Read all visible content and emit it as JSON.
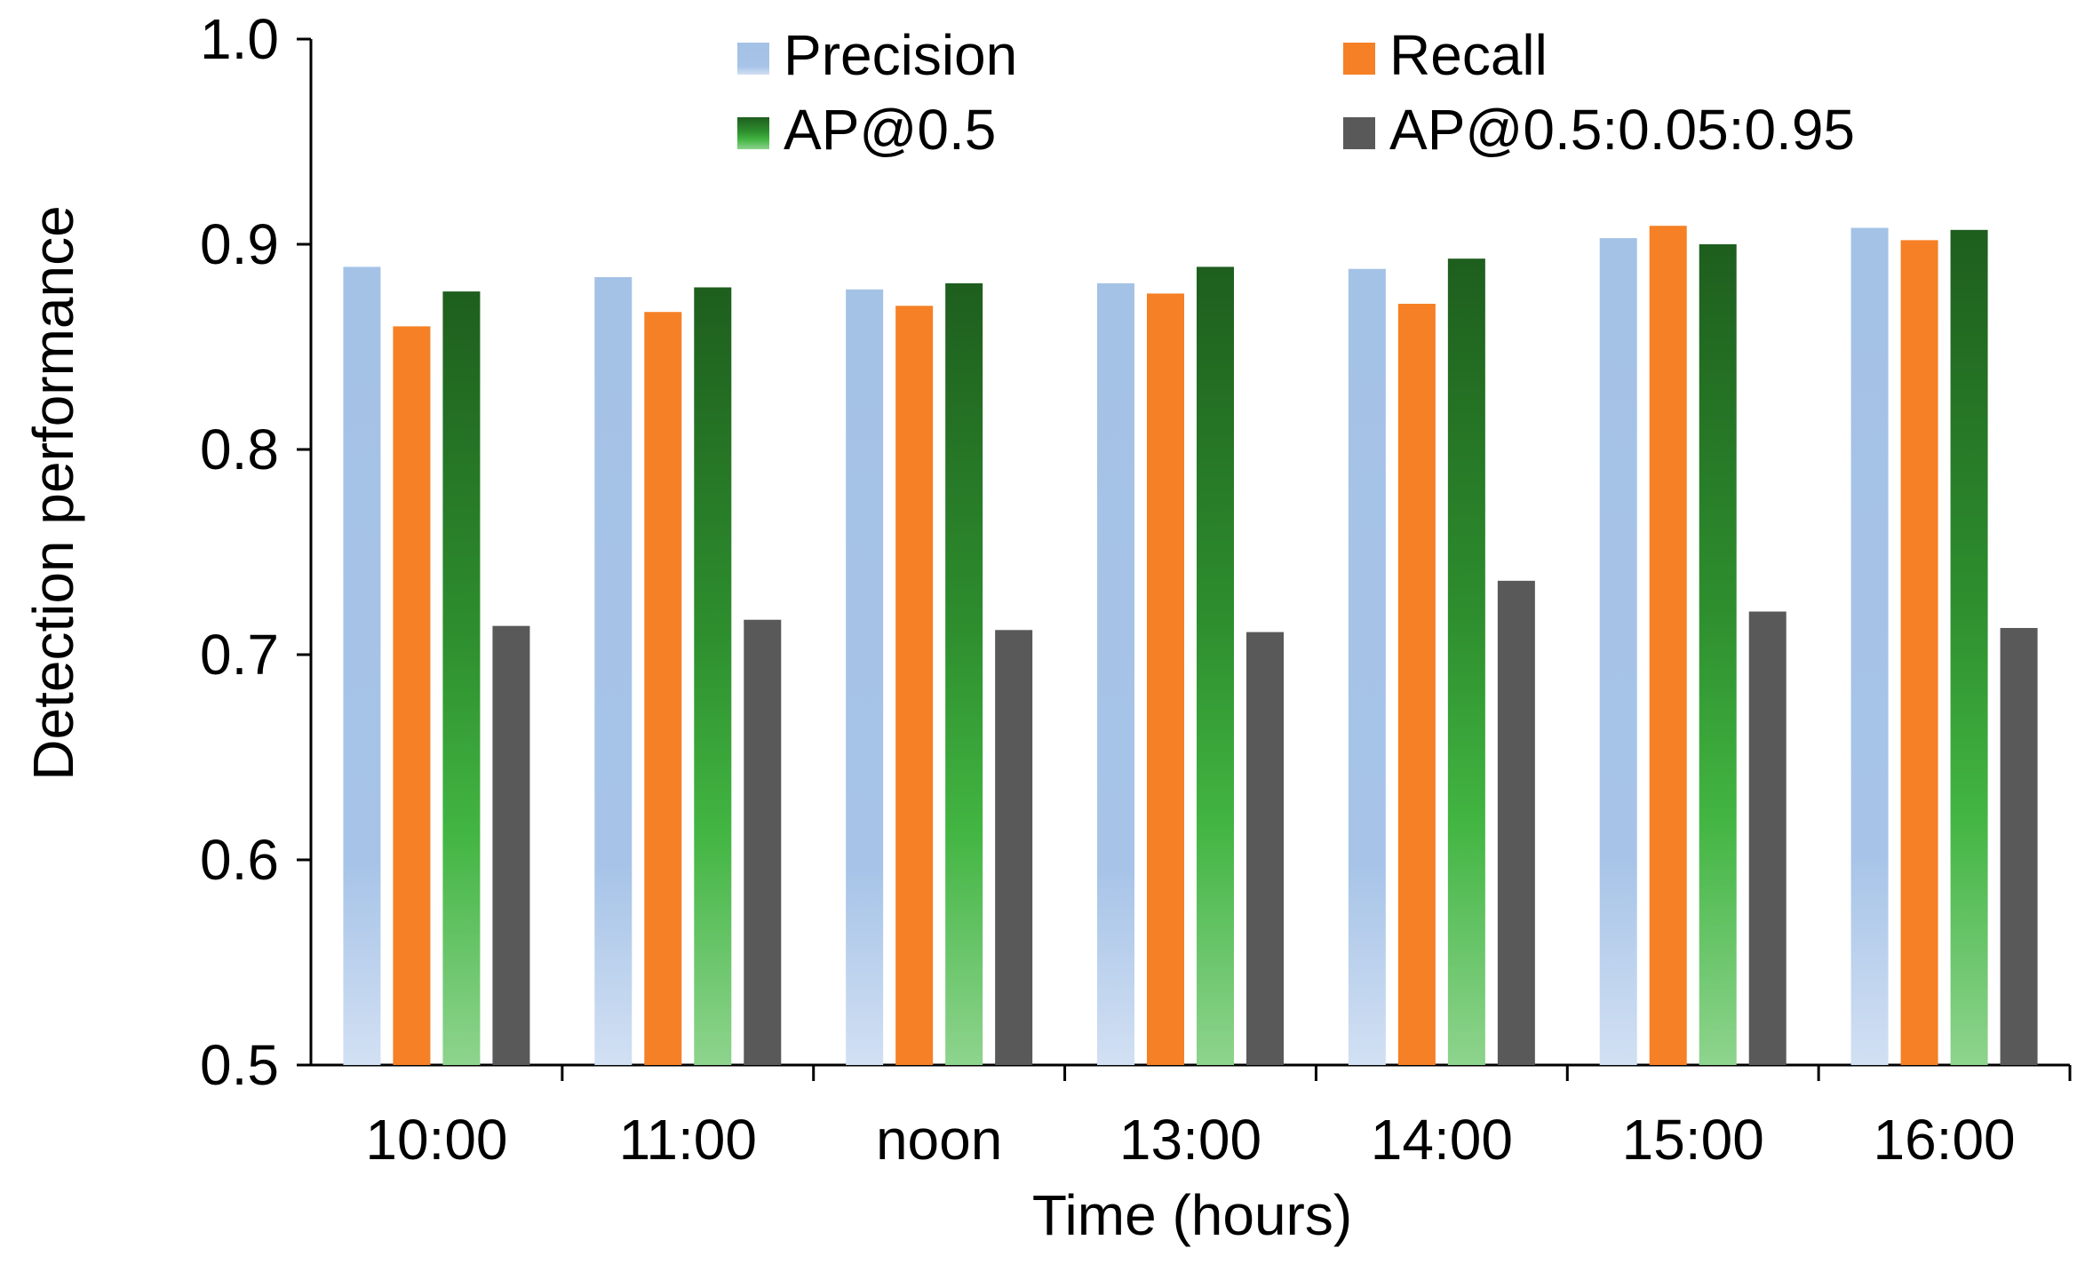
{
  "chart_data": {
    "type": "bar",
    "title": "",
    "xlabel": "Time (hours)",
    "ylabel": "Detection performance",
    "ylim": [
      0.5,
      1.0
    ],
    "yticks": [
      "0.5",
      "0.6",
      "0.7",
      "0.8",
      "0.9",
      "1.0"
    ],
    "ytick_values": [
      0.5,
      0.6,
      0.7,
      0.8,
      0.9,
      1.0
    ],
    "grid": false,
    "legend_position": "top",
    "categories": [
      "10:00",
      "11:00",
      "noon",
      "13:00",
      "14:00",
      "15:00",
      "16:00"
    ],
    "series": [
      {
        "name": "Precision",
        "color": "#A9C4E8",
        "values": [
          0.889,
          0.884,
          0.878,
          0.881,
          0.888,
          0.903,
          0.908
        ]
      },
      {
        "name": "Recall",
        "color": "#F58025",
        "values": [
          0.86,
          0.867,
          0.87,
          0.876,
          0.871,
          0.909,
          0.902
        ]
      },
      {
        "name": "AP@0.5",
        "color": "#2E8B2E",
        "values": [
          0.877,
          0.879,
          0.881,
          0.889,
          0.893,
          0.9,
          0.907
        ]
      },
      {
        "name": "AP@0.5:0.05:0.95",
        "color": "#595959",
        "values": [
          0.714,
          0.717,
          0.712,
          0.711,
          0.736,
          0.721,
          0.713
        ]
      }
    ]
  }
}
